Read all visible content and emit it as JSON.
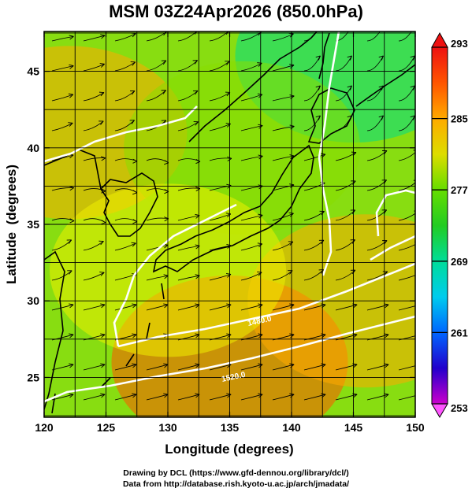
{
  "chart_data": {
    "type": "heatmap",
    "title": "MSM 03Z24Apr2026 (850.0hPa)",
    "xlabel": "Longitude (degrees)",
    "ylabel": "Latitude  (degrees)",
    "xlim": [
      120,
      150
    ],
    "ylim": [
      22.4,
      47.6
    ],
    "x_ticks": [
      120,
      125,
      130,
      135,
      140,
      145,
      150
    ],
    "x_tick_labels": [
      "120",
      "125",
      "130",
      "135",
      "140",
      "145",
      "150"
    ],
    "y_ticks": [
      25,
      30,
      35,
      40,
      45
    ],
    "y_tick_labels": [
      "25",
      "30",
      "35",
      "40",
      "45"
    ],
    "grid": true,
    "grid_lon_step": 2.5,
    "grid_lat_step": 2.5,
    "colorbar": {
      "min": 253,
      "max": 293,
      "ticks": [
        293,
        285,
        277,
        269,
        261,
        253
      ],
      "tick_labels": [
        "293",
        "285",
        "277",
        "269",
        "261",
        "253"
      ],
      "colors": [
        "#cc00cc",
        "#4a00cc",
        "#0033ff",
        "#0099ff",
        "#00ddee",
        "#00dd88",
        "#22cc22",
        "#88dd00",
        "#eeee00",
        "#ffaa00",
        "#ff5500",
        "#ee1111"
      ]
    },
    "contour_labels": [
      "1480.0",
      "1520.0"
    ],
    "field_regions": [
      {
        "lon": 122,
        "lat": 41,
        "value": 283
      },
      {
        "lon": 145,
        "lat": 46,
        "value": 270
      },
      {
        "lon": 136,
        "lat": 40,
        "value": 278
      },
      {
        "lon": 135,
        "lat": 26,
        "value": 287
      },
      {
        "lon": 146,
        "lat": 30,
        "value": 285
      },
      {
        "lon": 130,
        "lat": 32,
        "value": 281
      }
    ]
  },
  "credits": {
    "line1": "Drawing by DCL (https://www.gfd-dennou.org/library/dcl/)",
    "line2": "Data from http://database.rish.kyoto-u.ac.jp/arch/jmadata/"
  }
}
